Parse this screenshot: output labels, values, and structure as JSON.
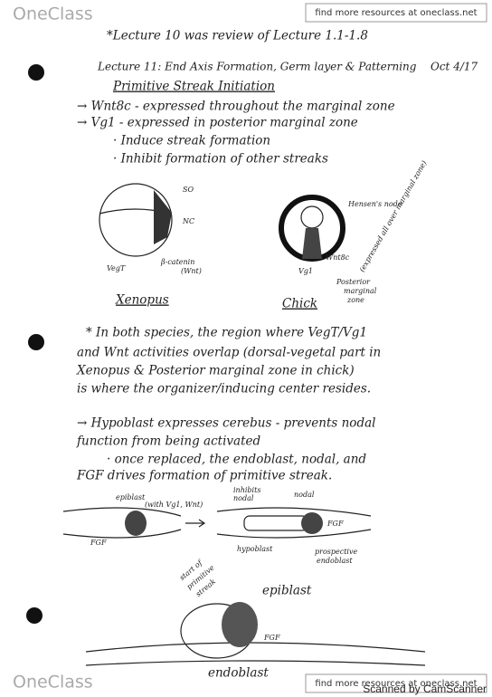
{
  "header": {
    "logo": "OneClass",
    "link": "find more resources at oneclass.net"
  },
  "note": "*Lecture 10 was review of Lecture 1.1-1.8",
  "title": "Lecture 11: End Axis Formation, Germ layer & Patterning",
  "date": "Oct 4/17",
  "subtitle": "Primitive Streak Initiation",
  "lines": [
    "→ Wnt8c - expressed throughout the marginal zone",
    "→ Vg1 - expressed in posterior marginal zone",
    "· Induce streak formation",
    "· Inhibit formation of other streaks"
  ],
  "diagram1": {
    "xenopus_labels": [
      "SO",
      "NC",
      "VegT",
      "β-catenin",
      "(Wnt)"
    ],
    "xenopus_caption": "Xenopus",
    "chick_labels": [
      "Hensen's node",
      "Vg1",
      "Wnt8c",
      "(expressed all over marginal zone)",
      "Posterior",
      "marginal",
      "zone"
    ],
    "chick_caption": "Chick"
  },
  "paragraph": [
    "* In both species, the region where VegT/Vg1",
    "and Wnt activities overlap (dorsal-vegetal part in",
    "Xenopus & Posterior marginal zone in chick)",
    "is where the organizer/inducing center resides."
  ],
  "hypoblast": [
    "→ Hypoblast expresses cerebus - prevents nodal",
    "function from being activated",
    "· once replaced, the endoblast, nodal, and",
    "FGF drives formation of primitive streak."
  ],
  "diagram2": {
    "labels": [
      "epiblast",
      "(with Vg1, Wnt)",
      "FGF",
      "inhibits",
      "nodal",
      "nodal",
      "FGF",
      "hypoblast",
      "prospective",
      "endoblast",
      "start of",
      "primitive",
      "streak",
      "epiblast",
      "FGF",
      "endoblast"
    ]
  },
  "footer": {
    "logo": "OneClass",
    "link": "find more resources at oneclass.net",
    "scanner": "Scanned by CamScanner"
  }
}
